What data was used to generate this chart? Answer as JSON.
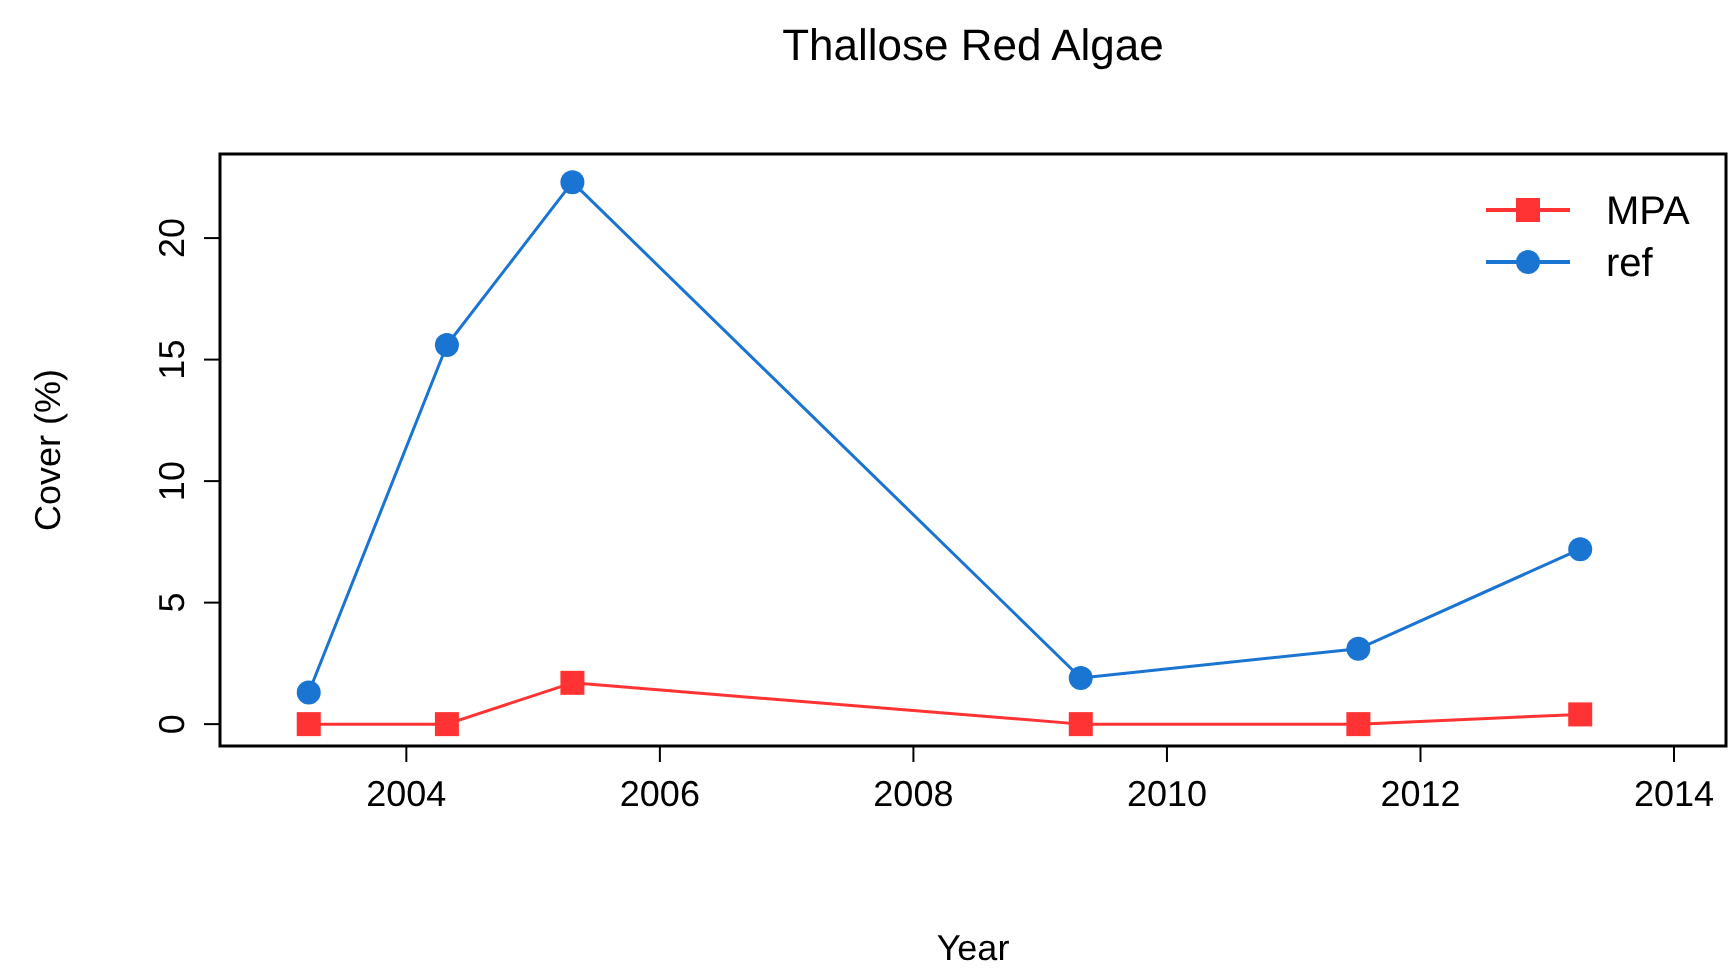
{
  "chart_data": {
    "type": "line",
    "title": "Thallose Red Algae",
    "xlabel": "Year",
    "ylabel": "Cover (%)",
    "x": [
      2003.23,
      2004.32,
      2005.31,
      2009.32,
      2011.51,
      2013.26
    ],
    "series": [
      {
        "name": "MPA",
        "color": "#ff3333",
        "marker": "square",
        "values": [
          0,
          0,
          1.7,
          0,
          0,
          0.4
        ]
      },
      {
        "name": "ref",
        "color": "#1a74d2",
        "marker": "circle",
        "values": [
          1.3,
          15.6,
          22.3,
          1.9,
          3.1,
          7.2
        ]
      }
    ],
    "xlim": [
      2002.53,
      2014.41
    ],
    "xticks": [
      2004,
      2006,
      2008,
      2010,
      2012,
      2014
    ],
    "ylim": [
      -0.9,
      23.46
    ],
    "yticks": [
      0,
      5,
      10,
      15,
      20
    ],
    "grid": false,
    "legend": "top right",
    "line_style": "solid"
  }
}
